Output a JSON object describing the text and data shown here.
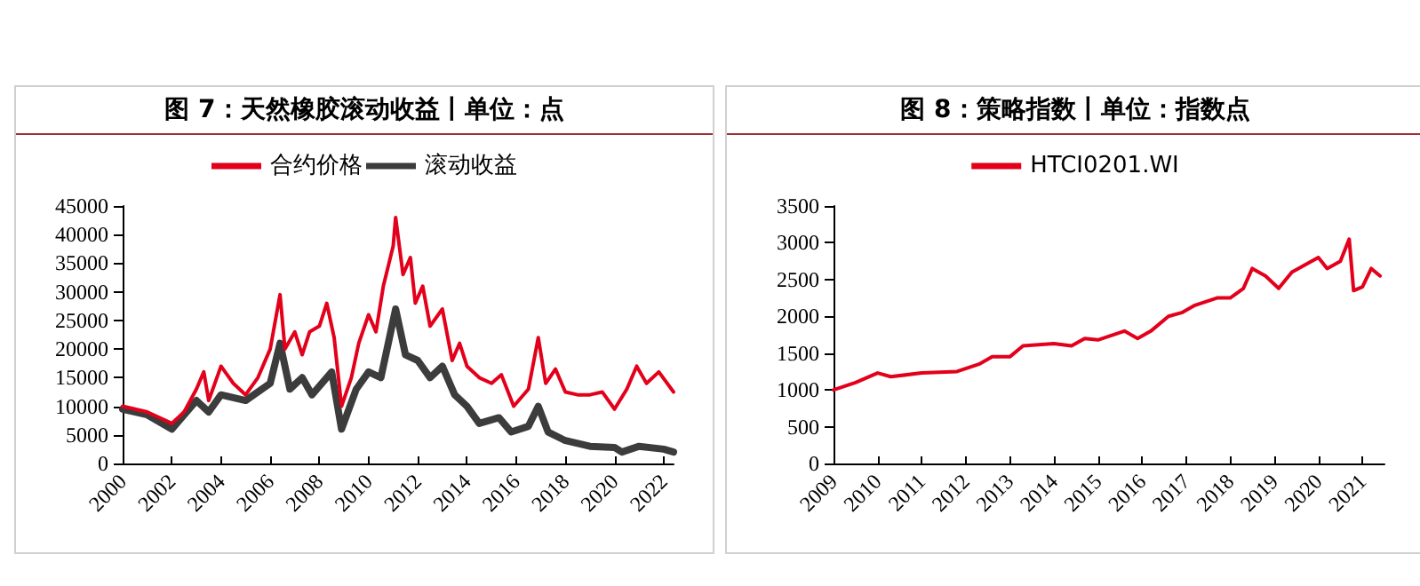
{
  "chart_data": [
    {
      "type": "line",
      "title": "图 7：天然橡胶滚动收益丨单位：点",
      "legend": "top",
      "grid": false,
      "marker": "none",
      "line_style": "solid",
      "xlim": [
        2000,
        2022.4
      ],
      "xticks": [
        2000,
        2002,
        2004,
        2006,
        2008,
        2010,
        2012,
        2014,
        2016,
        2018,
        2020,
        2022
      ],
      "ylim": [
        0,
        45000
      ],
      "yticks": [
        0,
        5000,
        10000,
        15000,
        20000,
        25000,
        30000,
        35000,
        40000,
        45000
      ],
      "series": [
        {
          "name": "合约价格",
          "color": "#e3001b",
          "x": [
            2000,
            2001,
            2002,
            2002.5,
            2003,
            2003.3,
            2003.5,
            2004,
            2004.5,
            2005,
            2005.5,
            2006,
            2006.4,
            2006.6,
            2007,
            2007.3,
            2007.6,
            2008,
            2008.3,
            2008.6,
            2008.9,
            2009.3,
            2009.6,
            2010,
            2010.3,
            2010.6,
            2011,
            2011.1,
            2011.4,
            2011.7,
            2011.9,
            2012.2,
            2012.5,
            2013,
            2013.4,
            2013.7,
            2014,
            2014.5,
            2015,
            2015.4,
            2015.9,
            2016.5,
            2016.9,
            2017.2,
            2017.6,
            2018,
            2018.5,
            2019,
            2019.5,
            2020,
            2020.5,
            2020.9,
            2021.3,
            2021.8,
            2022.4
          ],
          "values": [
            10000,
            9000,
            7000,
            9000,
            13000,
            16000,
            11000,
            17000,
            14000,
            12000,
            15000,
            20000,
            29500,
            20000,
            23000,
            19000,
            23000,
            24000,
            28000,
            22000,
            10000,
            15000,
            21000,
            26000,
            23000,
            31000,
            38000,
            43000,
            33000,
            36000,
            28000,
            31000,
            24000,
            27000,
            18000,
            21000,
            17000,
            15000,
            14000,
            15500,
            10000,
            13000,
            22000,
            14000,
            16500,
            12500,
            12000,
            12000,
            12500,
            9500,
            13000,
            17000,
            14000,
            16000,
            12500
          ]
        },
        {
          "name": "滚动收益",
          "color": "#3c3c3c",
          "x": [
            2000,
            2001,
            2002,
            2003,
            2003.5,
            2004,
            2005,
            2006,
            2006.4,
            2006.8,
            2007.3,
            2007.7,
            2008.5,
            2008.9,
            2009.5,
            2010,
            2010.5,
            2011,
            2011.1,
            2011.5,
            2012,
            2012.5,
            2013,
            2013.5,
            2014,
            2014.5,
            2015.3,
            2015.8,
            2016.5,
            2016.9,
            2017.3,
            2018,
            2019,
            2020,
            2020.3,
            2021,
            2022,
            2022.4
          ],
          "values": [
            9500,
            8500,
            6000,
            11000,
            9000,
            12000,
            11000,
            14000,
            21000,
            13000,
            15000,
            12000,
            16000,
            6000,
            13000,
            16000,
            15000,
            25000,
            27000,
            19000,
            18000,
            15000,
            17000,
            12000,
            10000,
            7000,
            8000,
            5500,
            6500,
            10000,
            5500,
            4000,
            3000,
            2800,
            2000,
            3000,
            2500,
            2000
          ]
        }
      ]
    },
    {
      "type": "line",
      "title": "图 8：策略指数丨单位：指数点",
      "legend": "top",
      "grid": false,
      "marker": "none",
      "line_style": "solid",
      "xlim": [
        2009,
        2021.5
      ],
      "xticks": [
        2009,
        2010,
        2011,
        2012,
        2013,
        2014,
        2015,
        2016,
        2017,
        2018,
        2019,
        2020,
        2021
      ],
      "ylim": [
        0,
        3500
      ],
      "yticks": [
        0,
        500,
        1000,
        1500,
        2000,
        2500,
        3000,
        3500
      ],
      "series": [
        {
          "name": "HTCI0201.WI",
          "color": "#e3001b",
          "x": [
            2009,
            2009.5,
            2010,
            2010.3,
            2011,
            2011.8,
            2012.3,
            2012.6,
            2013,
            2013.3,
            2014,
            2014.4,
            2014.7,
            2015,
            2015.6,
            2015.9,
            2016.2,
            2016.6,
            2016.9,
            2017.2,
            2017.7,
            2018,
            2018.3,
            2018.5,
            2018.8,
            2019.1,
            2019.4,
            2019.7,
            2020,
            2020.2,
            2020.5,
            2020.7,
            2020.8,
            2021,
            2021.2,
            2021.4
          ],
          "values": [
            1000,
            1100,
            1230,
            1180,
            1230,
            1250,
            1350,
            1450,
            1450,
            1600,
            1630,
            1600,
            1700,
            1680,
            1800,
            1700,
            1800,
            2000,
            2050,
            2150,
            2250,
            2250,
            2380,
            2650,
            2550,
            2380,
            2600,
            2700,
            2800,
            2650,
            2750,
            3050,
            2350,
            2400,
            2650,
            2550
          ]
        }
      ]
    }
  ]
}
